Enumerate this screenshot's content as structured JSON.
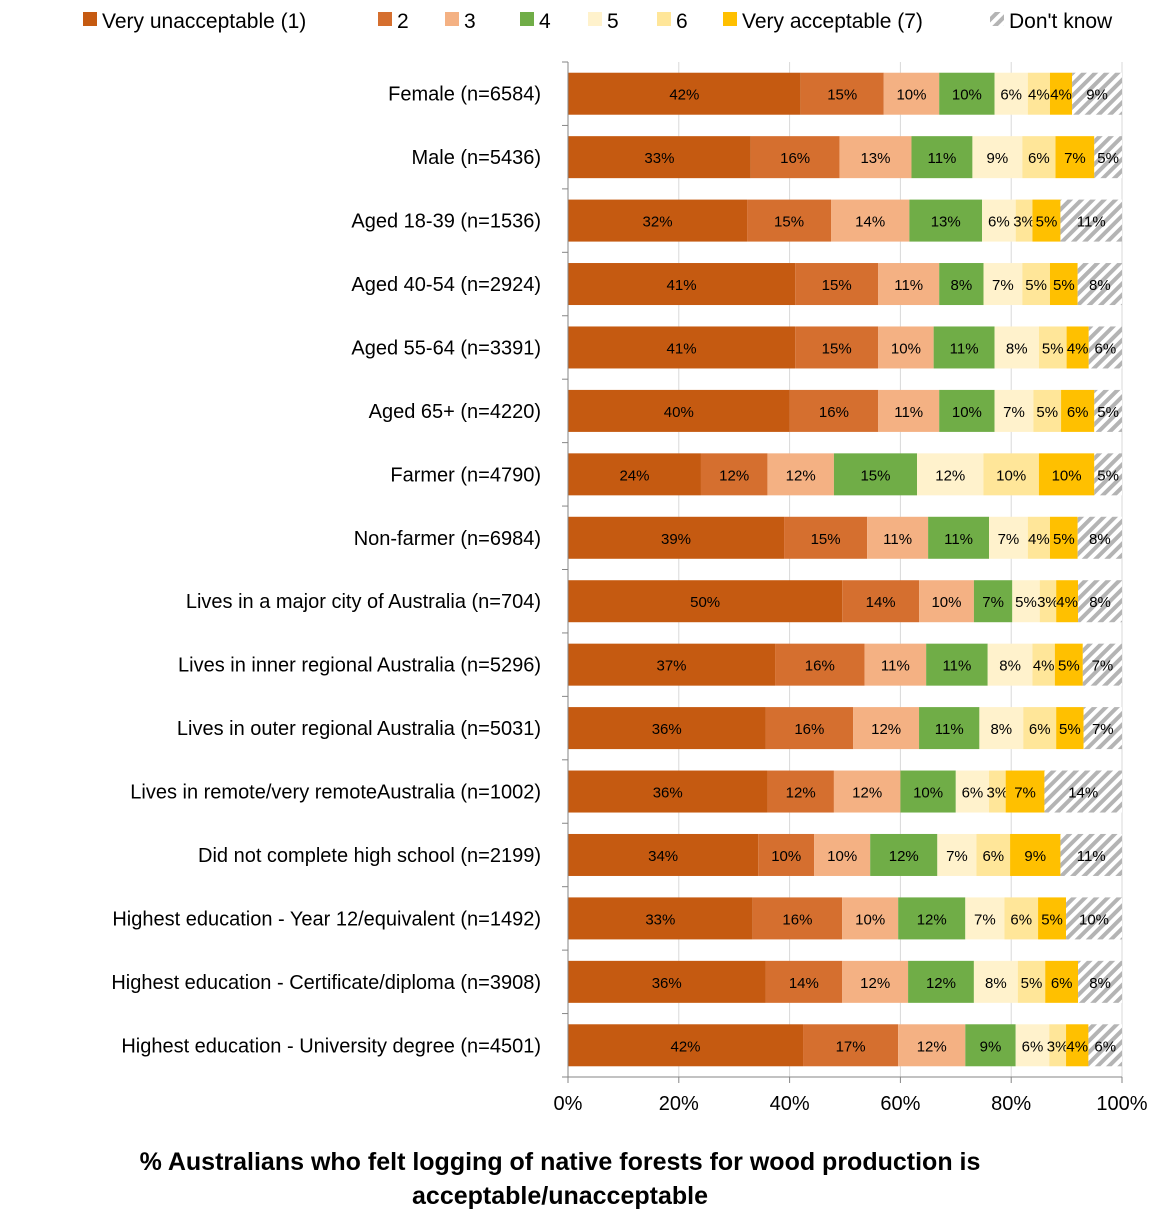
{
  "chart_data": {
    "type": "bar",
    "orientation": "horizontal",
    "stacked": "percent",
    "title_lines": [
      "% Australians who felt logging of native forests for wood production is",
      "acceptable/unacceptable"
    ],
    "xlim": [
      0,
      100
    ],
    "x_ticks": [
      "0%",
      "20%",
      "40%",
      "60%",
      "80%",
      "100%"
    ],
    "grid": "vertical",
    "legend_position": "top",
    "categories": [
      "Female (n=6584)",
      "Male (n=5436)",
      "Aged 18-39 (n=1536)",
      "Aged 40-54 (n=2924)",
      "Aged 55-64 (n=3391)",
      "Aged 65+ (n=4220)",
      "Farmer (n=4790)",
      "Non-farmer (n=6984)",
      "Lives in a major city of Australia (n=704)",
      "Lives in inner regional Australia (n=5296)",
      "Lives in outer regional Australia (n=5031)",
      "Lives in remote/very remoteAustralia (n=1002)",
      "Did not complete high school (n=2199)",
      "Highest education - Year 12/equivalent (n=1492)",
      "Highest education - Certificate/diploma (n=3908)",
      "Highest education - University degree (n=4501)"
    ],
    "series": [
      {
        "name": "Very unacceptable (1)",
        "color": "#c55a11",
        "values": [
          42,
          33,
          32,
          41,
          41,
          40,
          24,
          39,
          50,
          37,
          36,
          36,
          34,
          33,
          36,
          42
        ]
      },
      {
        "name": "2",
        "color": "#d56f2f",
        "values": [
          15,
          16,
          15,
          15,
          15,
          16,
          12,
          15,
          14,
          16,
          16,
          12,
          10,
          16,
          14,
          17
        ]
      },
      {
        "name": "3",
        "color": "#f4b183",
        "values": [
          10,
          13,
          14,
          11,
          10,
          11,
          12,
          11,
          10,
          11,
          12,
          12,
          10,
          10,
          12,
          12
        ]
      },
      {
        "name": "4",
        "color": "#70ad47",
        "values": [
          10,
          11,
          13,
          8,
          11,
          10,
          15,
          11,
          7,
          11,
          11,
          10,
          12,
          12,
          12,
          9
        ]
      },
      {
        "name": "5",
        "color": "#fff2cc",
        "values": [
          6,
          9,
          6,
          7,
          8,
          7,
          12,
          7,
          5,
          8,
          8,
          6,
          7,
          7,
          8,
          6
        ]
      },
      {
        "name": "6",
        "color": "#ffe699",
        "values": [
          4,
          6,
          3,
          5,
          5,
          5,
          10,
          4,
          3,
          4,
          6,
          3,
          6,
          6,
          5,
          3
        ]
      },
      {
        "name": "Very acceptable (7)",
        "color": "#ffc000",
        "values": [
          4,
          7,
          5,
          5,
          4,
          6,
          10,
          5,
          4,
          5,
          5,
          7,
          9,
          5,
          6,
          4
        ]
      },
      {
        "name": "Don't know",
        "color": "#bfbfbf",
        "pattern": "diagonal-stripes",
        "values": [
          9,
          5,
          11,
          8,
          6,
          5,
          5,
          8,
          8,
          7,
          7,
          14,
          11,
          10,
          8,
          6
        ]
      }
    ]
  }
}
